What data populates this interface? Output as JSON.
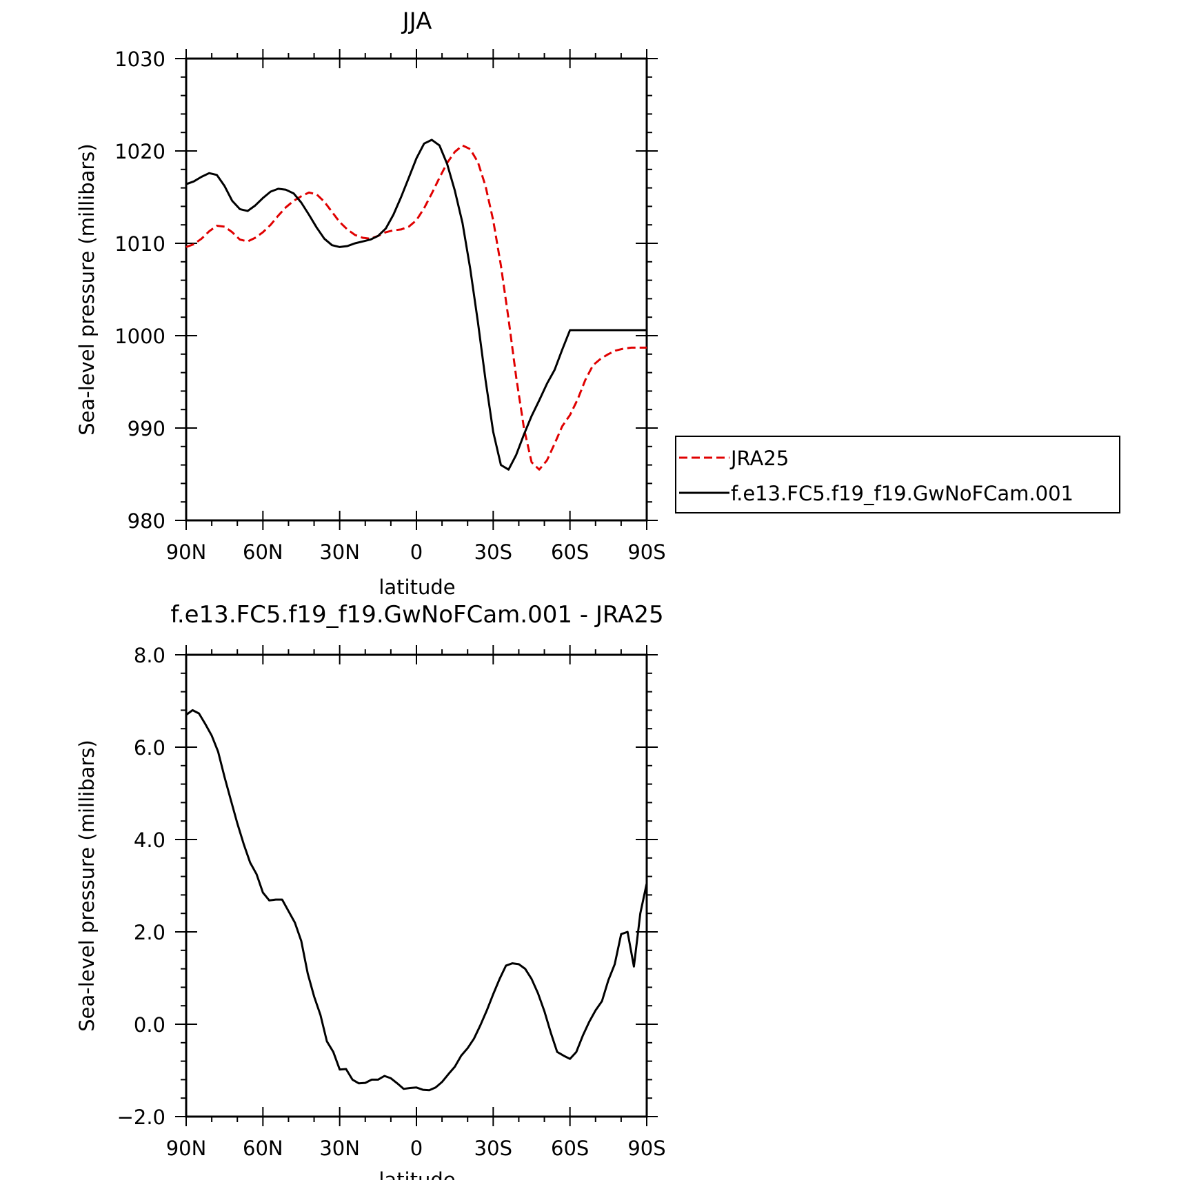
{
  "chart_data": [
    {
      "type": "line",
      "title": "JJA",
      "xlabel": "latitude",
      "ylabel": "Sea-level pressure (millibars)",
      "xlim": [
        90,
        -90
      ],
      "ylim": [
        980,
        1030
      ],
      "xticks": [
        90,
        60,
        30,
        0,
        -30,
        -60,
        -90
      ],
      "xtick_labels": [
        "90N",
        "60N",
        "30N",
        "0",
        "30S",
        "60S",
        "90S"
      ],
      "yticks": [
        980,
        990,
        1000,
        1010,
        1020,
        1030
      ],
      "ytick_labels": [
        "980",
        "990",
        "1000",
        "1010",
        "1020",
        "1030"
      ],
      "legend_position": "right",
      "series": [
        {
          "name": "JRA25",
          "color": "#e00000",
          "dash": "dashed",
          "x": [
            90,
            87,
            84,
            81,
            78,
            75,
            72,
            69,
            66,
            63,
            60,
            57,
            54,
            51,
            48,
            45,
            42,
            39,
            36,
            33,
            30,
            27,
            24,
            21,
            18,
            15,
            12,
            9,
            6,
            3,
            0,
            -3,
            -6,
            -9,
            -12,
            -15,
            -18,
            -21,
            -24,
            -27,
            -30,
            -33,
            -36,
            -39,
            -42,
            -45,
            -48,
            -51,
            -54,
            -57,
            -60,
            -63,
            -66,
            -69,
            -72,
            -75,
            -78,
            -81,
            -84,
            -87,
            -90
          ],
          "y": [
            1009.6,
            1009.9,
            1010.5,
            1011.3,
            1011.9,
            1011.8,
            1011.2,
            1010.4,
            1010.2,
            1010.6,
            1011.2,
            1012.0,
            1013.0,
            1013.9,
            1014.6,
            1015.1,
            1015.5,
            1015.3,
            1014.5,
            1013.4,
            1012.3,
            1011.5,
            1010.9,
            1010.6,
            1010.5,
            1010.8,
            1011.2,
            1011.4,
            1011.5,
            1011.8,
            1012.5,
            1013.8,
            1015.4,
            1017.1,
            1018.7,
            1019.9,
            1020.6,
            1020.2,
            1018.8,
            1016.2,
            1012.5,
            1007.6,
            1001.8,
            995.5,
            990.0,
            986.3,
            985.5,
            986.5,
            988.3,
            990.2,
            991.4,
            993.1,
            995.2,
            996.8,
            997.5,
            998.0,
            998.4,
            998.6,
            998.7,
            998.7,
            998.7
          ]
        },
        {
          "name": "f.e13.FC5.f19_f19.GwNoFCam.001",
          "color": "#000000",
          "dash": "solid",
          "x": [
            90,
            87,
            84,
            81,
            78,
            75,
            72,
            69,
            66,
            63,
            60,
            57,
            54,
            51,
            48,
            45,
            42,
            39,
            36,
            33,
            30,
            27,
            24,
            21,
            18,
            15,
            12,
            9,
            6,
            3,
            0,
            -3,
            -6,
            -9,
            -12,
            -15,
            -18,
            -21,
            -24,
            -27,
            -30,
            -33,
            -36,
            -39,
            -42,
            -45,
            -48,
            -51,
            -54,
            -57,
            -60,
            -63,
            -66,
            -69,
            -72,
            -75,
            -78,
            -81,
            -84,
            -87,
            -90
          ],
          "y": [
            1016.4,
            1016.7,
            1017.2,
            1017.6,
            1017.4,
            1016.2,
            1014.6,
            1013.7,
            1013.5,
            1014.1,
            1014.9,
            1015.6,
            1015.9,
            1015.8,
            1015.4,
            1014.4,
            1013.1,
            1011.7,
            1010.5,
            1009.8,
            1009.6,
            1009.7,
            1010.0,
            1010.2,
            1010.4,
            1010.8,
            1011.6,
            1013.1,
            1015.0,
            1017.1,
            1019.2,
            1020.8,
            1021.2,
            1020.6,
            1018.6,
            1015.7,
            1012.2,
            1007.3,
            1001.5,
            995.2,
            989.6,
            986.0,
            985.5,
            987.1,
            989.3,
            991.3,
            993.0,
            994.8,
            996.3,
            998.5,
            1000.6,
            1000.6,
            1000.6,
            1000.6,
            1000.6,
            1000.6,
            1000.6,
            1000.6,
            1000.6,
            1000.6,
            1000.6
          ]
        }
      ]
    },
    {
      "type": "line",
      "title": "f.e13.FC5.f19_f19.GwNoFCam.001 - JRA25",
      "xlabel": "latitude",
      "ylabel": "Sea-level pressure (millibars)",
      "xlim": [
        90,
        -90
      ],
      "ylim": [
        -2.0,
        8.0
      ],
      "xticks": [
        90,
        60,
        30,
        0,
        -30,
        -60,
        -90
      ],
      "xtick_labels": [
        "90N",
        "60N",
        "30N",
        "0",
        "30S",
        "60S",
        "90S"
      ],
      "yticks": [
        -2.0,
        0.0,
        2.0,
        4.0,
        6.0,
        8.0
      ],
      "ytick_labels": [
        "−2.0",
        "0.0",
        "2.0",
        "4.0",
        "6.0",
        "8.0"
      ],
      "series": [
        {
          "color": "#000000",
          "dash": "solid",
          "x": [
            90,
            87.5,
            85,
            82.5,
            80,
            77.5,
            75,
            72.5,
            70,
            67.5,
            65,
            62.5,
            60,
            57.5,
            55,
            52.5,
            50,
            47.5,
            45,
            42.5,
            40,
            37.5,
            35,
            32.5,
            30,
            27.5,
            25,
            22.5,
            20,
            17.5,
            15,
            12.5,
            10,
            7.5,
            5,
            2.5,
            0,
            -2.5,
            -5,
            -7.5,
            -10,
            -12.5,
            -15,
            -17.5,
            -20,
            -22.5,
            -25,
            -27.5,
            -30,
            -32.5,
            -35,
            -37.5,
            -40,
            -42.5,
            -45,
            -47.5,
            -50,
            -52.5,
            -55,
            -57.5,
            -60,
            -62.5,
            -65,
            -67.5,
            -70,
            -72.5,
            -75,
            -77.5,
            -80,
            -82.5,
            -85,
            -87.5,
            -90
          ],
          "y": [
            6.7,
            6.8,
            6.73,
            6.5,
            6.25,
            5.9,
            5.35,
            4.85,
            4.35,
            3.9,
            3.5,
            3.25,
            2.85,
            2.68,
            2.7,
            2.7,
            2.45,
            2.2,
            1.8,
            1.1,
            0.6,
            0.2,
            -0.37,
            -0.6,
            -0.98,
            -0.97,
            -1.2,
            -1.28,
            -1.27,
            -1.2,
            -1.2,
            -1.12,
            -1.17,
            -1.28,
            -1.4,
            -1.38,
            -1.37,
            -1.42,
            -1.43,
            -1.37,
            -1.25,
            -1.08,
            -0.92,
            -0.68,
            -0.52,
            -0.31,
            -0.02,
            0.3,
            0.65,
            0.98,
            1.27,
            1.32,
            1.3,
            1.2,
            0.98,
            0.67,
            0.28,
            -0.18,
            -0.6,
            -0.68,
            -0.75,
            -0.6,
            -0.25,
            0.05,
            0.3,
            0.5,
            0.95,
            1.3,
            1.95,
            2.0,
            1.25,
            2.4,
            3.05
          ]
        }
      ]
    }
  ]
}
